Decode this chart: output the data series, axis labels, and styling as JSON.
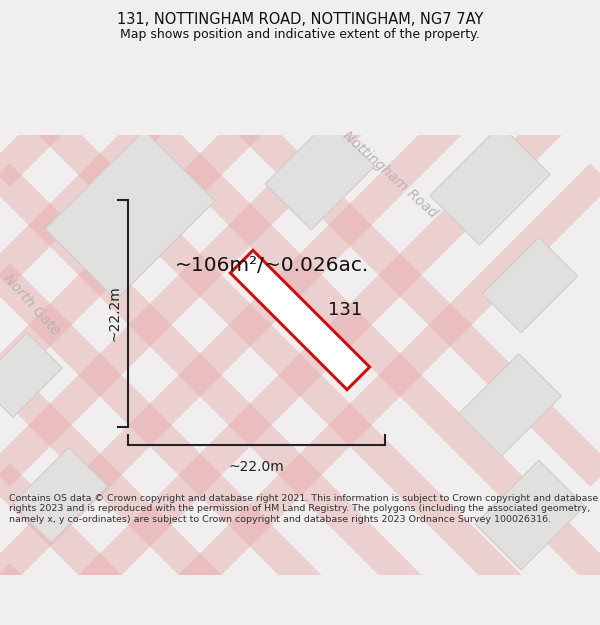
{
  "title_line1": "131, NOTTINGHAM ROAD, NOTTINGHAM, NG7 7AY",
  "title_line2": "Map shows position and indicative extent of the property.",
  "area_text": "~106m²/~0.026ac.",
  "label_131": "131",
  "dim_vertical": "~22.2m",
  "dim_horizontal": "~22.0m",
  "road_label1": "North Gate",
  "road_label2": "Nottingham Road",
  "footer_text": "Contains OS data © Crown copyright and database right 2021. This information is subject to Crown copyright and database rights 2023 and is reproduced with the permission of HM Land Registry. The polygons (including the associated geometry, namely x, y co-ordinates) are subject to Crown copyright and database rights 2023 Ordnance Survey 100026316.",
  "map_bg": "#f0eeee",
  "block_color": "#e2dfdf",
  "block_edge": "#d0cccc",
  "red_color": "#cc1111",
  "pink_color": "#e8aaaa",
  "dim_color": "#222222",
  "text_color": "#111111",
  "road_text_color": "#b8b4b4",
  "footer_color": "#333333",
  "road_lw": 22,
  "road_alpha": 0.45
}
